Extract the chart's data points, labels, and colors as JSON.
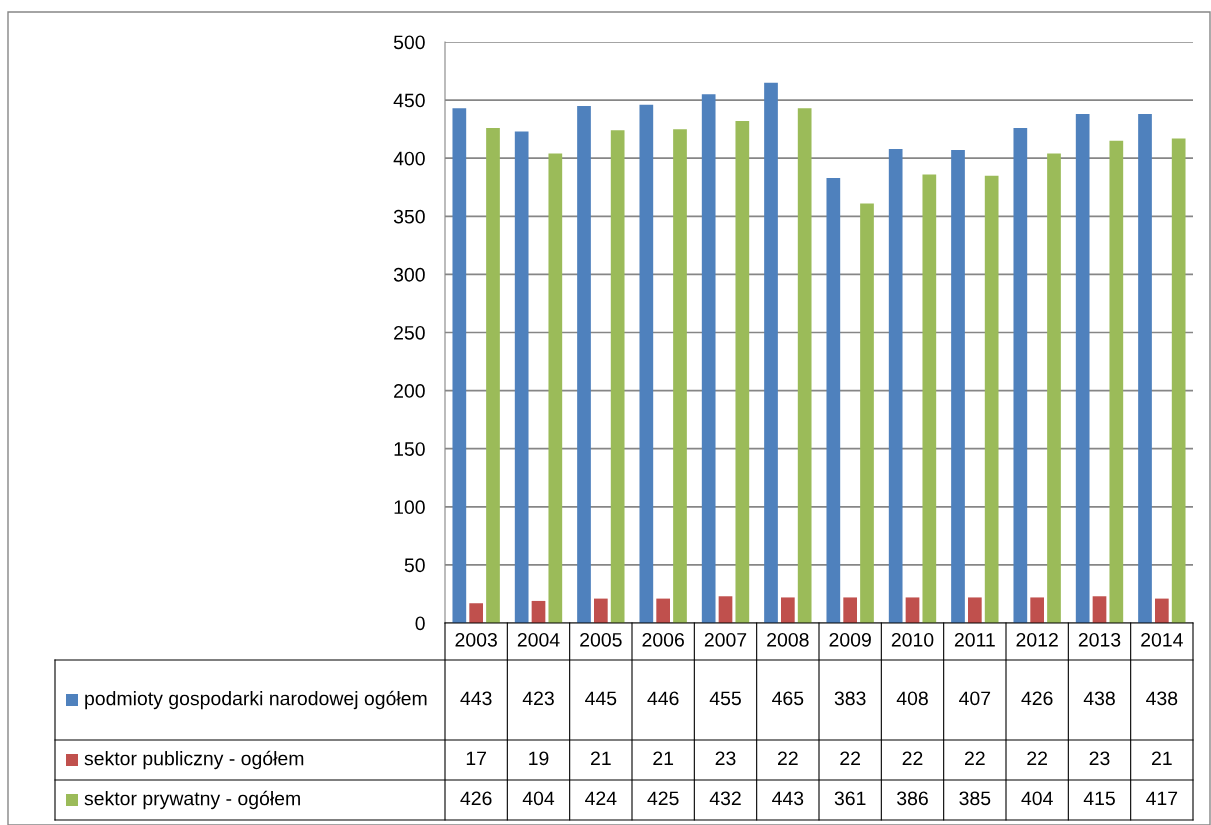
{
  "chart_data": {
    "type": "bar",
    "categories": [
      "2003",
      "2004",
      "2005",
      "2006",
      "2007",
      "2008",
      "2009",
      "2010",
      "2011",
      "2012",
      "2013",
      "2014"
    ],
    "series": [
      {
        "name": "podmioty gospodarki narodowej ogółem",
        "color": "#4f81bd",
        "values": [
          443,
          423,
          445,
          446,
          455,
          465,
          383,
          408,
          407,
          426,
          438,
          438
        ]
      },
      {
        "name": "sektor publiczny - ogółem",
        "color": "#c0504d",
        "values": [
          17,
          19,
          21,
          21,
          23,
          22,
          22,
          22,
          22,
          22,
          23,
          21
        ]
      },
      {
        "name": "sektor prywatny - ogółem",
        "color": "#9bbb59",
        "values": [
          426,
          404,
          424,
          425,
          432,
          443,
          361,
          386,
          385,
          404,
          415,
          417
        ]
      }
    ],
    "ylim": [
      0,
      500
    ],
    "yticks": [
      0,
      50,
      100,
      150,
      200,
      250,
      300,
      350,
      400,
      450,
      500
    ],
    "grid": "y",
    "data_labels": true,
    "legend": "bottom"
  }
}
